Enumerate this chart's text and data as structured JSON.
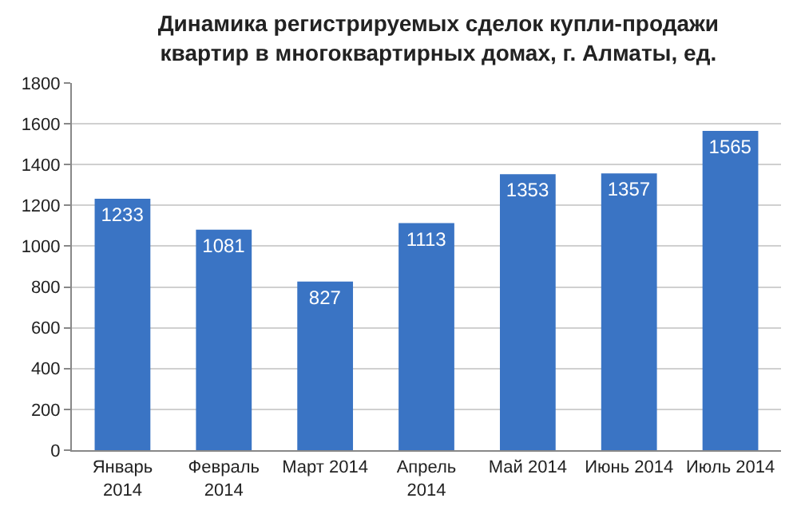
{
  "chart_data": {
    "type": "bar",
    "title": "Динамика регистрируемых сделок купли-продажи квартир в многоквартирных домах, г. Алматы, ед.",
    "categories": [
      "Январь 2014",
      "Февраль 2014",
      "Март 2014",
      "Апрель 2014",
      "Май 2014",
      "Июнь 2014",
      "Июль 2014"
    ],
    "values": [
      1233,
      1081,
      827,
      1113,
      1353,
      1357,
      1565
    ],
    "color": "#3a74c4",
    "ylim": [
      0,
      1800
    ],
    "yticks": [
      0,
      200,
      400,
      600,
      800,
      1000,
      1200,
      1400,
      1600,
      1800
    ],
    "grid": "y",
    "data_labels": true
  }
}
